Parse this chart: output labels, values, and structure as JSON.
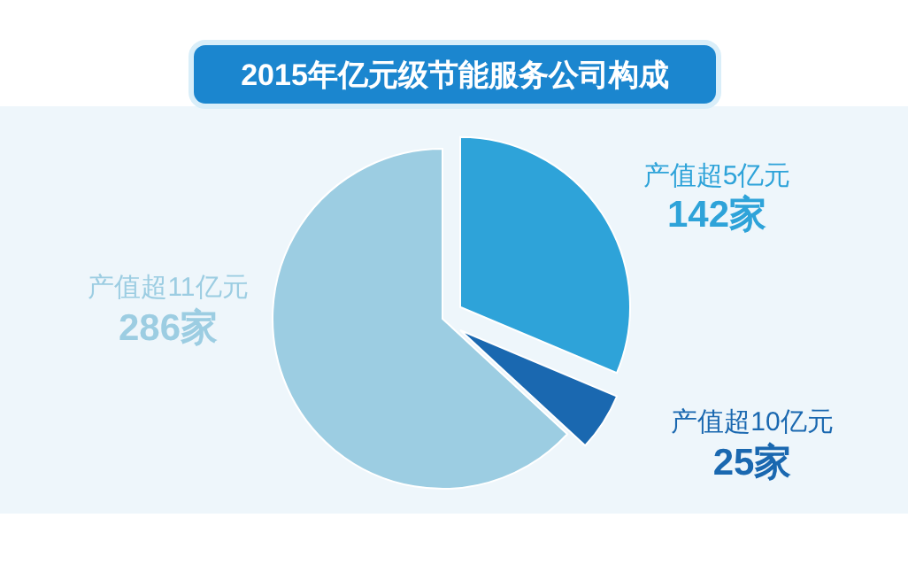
{
  "chart_data": {
    "type": "pie",
    "title": "2015年亿元级节能服务公司构成",
    "categories": [
      "产值超5亿元",
      "产值超10亿元",
      "产值超11亿元"
    ],
    "values": [
      142,
      25,
      286
    ],
    "colors": [
      "#2ea3d9",
      "#1a68b0",
      "#9ccde2"
    ],
    "value_labels": [
      "142家",
      "25家",
      "286家"
    ]
  }
}
